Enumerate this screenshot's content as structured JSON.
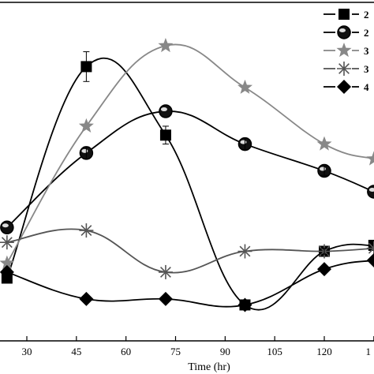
{
  "chart_data": {
    "type": "line",
    "xlabel": "Time (hr)",
    "xlim": [
      21,
      135
    ],
    "ylim": [
      0,
      100
    ],
    "x_ticks": [
      "30",
      "45",
      "60",
      "75",
      "90",
      "105",
      "120",
      "1"
    ],
    "grid": false,
    "legend_position": "top-right",
    "series": [
      {
        "name": "2",
        "marker": "square",
        "color": "#000000",
        "x": [
          24,
          48,
          72,
          96,
          120,
          135
        ],
        "y": [
          11,
          82,
          59,
          2,
          20,
          22
        ]
      },
      {
        "name": "2",
        "marker": "sphere",
        "color": "#000000",
        "x": [
          24,
          48,
          72,
          96,
          120,
          135
        ],
        "y": [
          28,
          53,
          67,
          56,
          47,
          40
        ]
      },
      {
        "name": "3",
        "marker": "star",
        "color": "#888888",
        "x": [
          24,
          48,
          72,
          96,
          120,
          135
        ],
        "y": [
          16,
          62,
          89,
          75,
          56,
          51
        ]
      },
      {
        "name": "3",
        "marker": "asterisk",
        "color": "#555555",
        "x": [
          24,
          48,
          72,
          96,
          120,
          135
        ],
        "y": [
          23,
          27,
          13,
          20,
          20,
          21
        ]
      },
      {
        "name": "4",
        "marker": "diamond",
        "color": "#000000",
        "x": [
          24,
          48,
          72,
          96,
          120,
          135
        ],
        "y": [
          13,
          4,
          4,
          2,
          14,
          17
        ]
      }
    ]
  }
}
